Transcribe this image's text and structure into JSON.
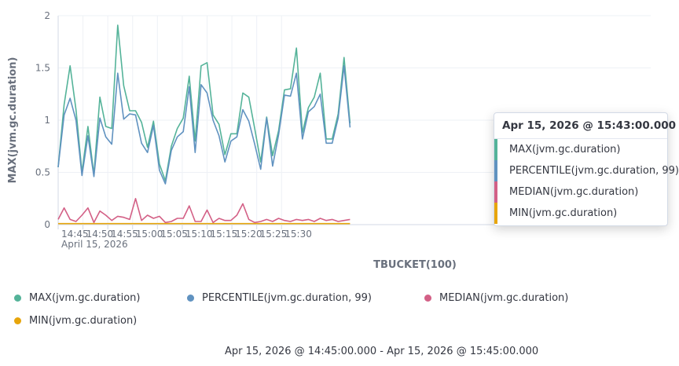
{
  "chart_data": {
    "type": "line",
    "ylabel": "MAX(jvm.gc.duration)",
    "xlabel": "TBUCKET(100)",
    "ylim": [
      0,
      2
    ],
    "yticks": [
      "0",
      "0.5",
      "1",
      "1.5",
      "2"
    ],
    "xticks": [
      "14:45",
      "14:50",
      "14:55",
      "15:00",
      "15:05",
      "15:10",
      "15:15",
      "15:20",
      "15:25",
      "15:30"
    ],
    "x_subtitle": "April 15, 2026",
    "x_start_minute": 0,
    "x_step_minutes": 1.2,
    "grid": true,
    "legend_position": "bottom",
    "series": [
      {
        "name": "MAX(jvm.gc.duration)",
        "color": "#54b399",
        "values": [
          0.55,
          1.15,
          1.52,
          1.1,
          0.5,
          0.94,
          0.48,
          1.22,
          0.94,
          0.92,
          1.91,
          1.33,
          1.09,
          1.09,
          0.98,
          0.74,
          0.99,
          0.58,
          0.42,
          0.75,
          0.92,
          1.02,
          1.42,
          0.8,
          1.52,
          1.55,
          1.05,
          0.96,
          0.67,
          0.87,
          0.87,
          1.26,
          1.22,
          0.92,
          0.6,
          1.03,
          0.66,
          0.9,
          1.29,
          1.3,
          1.69,
          0.88,
          1.12,
          1.22,
          1.45,
          0.82,
          0.82,
          1.06,
          1.6,
          0.97
        ]
      },
      {
        "name": "PERCENTILE(jvm.gc.duration, 99)",
        "color": "#6092c0",
        "values": [
          0.55,
          1.05,
          1.21,
          1.0,
          0.47,
          0.85,
          0.46,
          1.02,
          0.84,
          0.77,
          1.45,
          1.01,
          1.06,
          1.05,
          0.78,
          0.69,
          0.95,
          0.52,
          0.39,
          0.71,
          0.84,
          0.89,
          1.32,
          0.69,
          1.34,
          1.26,
          1.0,
          0.85,
          0.6,
          0.8,
          0.84,
          1.1,
          0.99,
          0.77,
          0.53,
          1.02,
          0.56,
          0.86,
          1.24,
          1.23,
          1.45,
          0.82,
          1.08,
          1.13,
          1.25,
          0.78,
          0.78,
          1.02,
          1.52,
          0.93
        ]
      },
      {
        "name": "MEDIAN(jvm.gc.duration)",
        "color": "#d36086",
        "values": [
          0.05,
          0.16,
          0.05,
          0.03,
          0.09,
          0.16,
          0.02,
          0.13,
          0.09,
          0.04,
          0.08,
          0.07,
          0.05,
          0.25,
          0.04,
          0.09,
          0.06,
          0.08,
          0.02,
          0.03,
          0.06,
          0.06,
          0.18,
          0.03,
          0.03,
          0.14,
          0.02,
          0.06,
          0.04,
          0.04,
          0.09,
          0.2,
          0.05,
          0.02,
          0.03,
          0.05,
          0.03,
          0.06,
          0.04,
          0.03,
          0.05,
          0.04,
          0.05,
          0.03,
          0.06,
          0.04,
          0.05,
          0.03,
          0.04,
          0.05
        ]
      },
      {
        "name": "MIN(jvm.gc.duration)",
        "color": "#e7a50b",
        "values": [
          0.01,
          0.01,
          0.01,
          0.01,
          0.01,
          0.01,
          0.01,
          0.01,
          0.01,
          0.01,
          0.01,
          0.01,
          0.01,
          0.01,
          0.01,
          0.01,
          0.01,
          0.01,
          0.01,
          0.01,
          0.01,
          0.01,
          0.01,
          0.01,
          0.01,
          0.01,
          0.01,
          0.01,
          0.01,
          0.01,
          0.01,
          0.01,
          0.01,
          0.01,
          0.01,
          0.01,
          0.01,
          0.01,
          0.01,
          0.01,
          0.01,
          0.01,
          0.01,
          0.01,
          0.01,
          0.01,
          0.01,
          0.01,
          0.01,
          0.01
        ]
      }
    ]
  },
  "tooltip": {
    "title": "Apr 15, 2026 @ 15:43:00.000",
    "rows": [
      {
        "label": "MAX(jvm.gc.duration)",
        "color": "#54b399"
      },
      {
        "label": "PERCENTILE(jvm.gc.duration, 99)",
        "color": "#6092c0"
      },
      {
        "label": "MEDIAN(jvm.gc.duration)",
        "color": "#d36086"
      },
      {
        "label": "MIN(jvm.gc.duration)",
        "color": "#e7a50b"
      }
    ]
  },
  "legend": {
    "items": [
      {
        "label": "MAX(jvm.gc.duration)",
        "color": "#54b399"
      },
      {
        "label": "PERCENTILE(jvm.gc.duration, 99)",
        "color": "#6092c0"
      },
      {
        "label": "MEDIAN(jvm.gc.duration)",
        "color": "#d36086"
      },
      {
        "label": "MIN(jvm.gc.duration)",
        "color": "#e7a50b"
      }
    ]
  },
  "time_range": "Apr 15, 2026 @ 14:45:00.000 - Apr 15, 2026 @ 15:45:00.000"
}
